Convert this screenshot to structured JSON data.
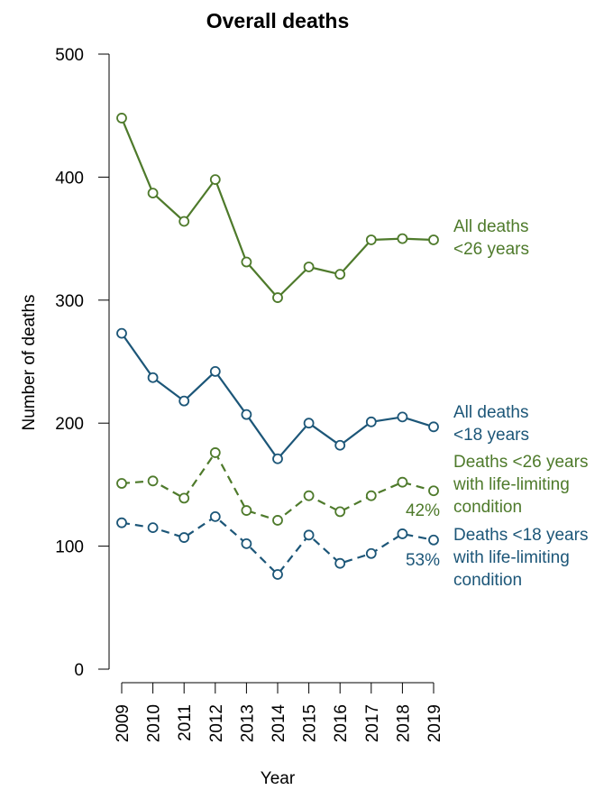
{
  "chart_data": {
    "type": "line",
    "title": "Overall deaths",
    "xlabel": "Year",
    "ylabel": "Number of deaths",
    "x": [
      "2009",
      "2010",
      "2011",
      "2012",
      "2013",
      "2014",
      "2015",
      "2016",
      "2017",
      "2018",
      "2019"
    ],
    "ylim": [
      0,
      500
    ],
    "yticks": [
      0,
      100,
      200,
      300,
      400,
      500
    ],
    "grid": false,
    "legend": "direct labels at right end of lines",
    "series": [
      {
        "key": "all26",
        "label_lines": [
          "All deaths",
          "<26 years"
        ],
        "color": "#4e7a2b",
        "dash": false,
        "values": [
          448,
          387,
          364,
          398,
          331,
          302,
          327,
          321,
          349,
          350,
          349
        ]
      },
      {
        "key": "all18",
        "label_lines": [
          "All deaths",
          "<18 years"
        ],
        "color": "#1c5678",
        "dash": false,
        "values": [
          273,
          237,
          218,
          242,
          207,
          171,
          200,
          182,
          201,
          205,
          197
        ]
      },
      {
        "key": "llc26",
        "label_lines": [
          "Deaths <26 years",
          "with life-limiting",
          "condition"
        ],
        "color": "#4e7a2b",
        "dash": true,
        "annotation": "42%",
        "values": [
          151,
          153,
          139,
          176,
          129,
          121,
          141,
          128,
          141,
          152,
          145
        ]
      },
      {
        "key": "llc18",
        "label_lines": [
          "Deaths <18 years",
          "with life-limiting",
          "condition"
        ],
        "color": "#1c5678",
        "dash": true,
        "annotation": "53%",
        "values": [
          119,
          115,
          107,
          124,
          102,
          77,
          109,
          86,
          94,
          110,
          105
        ]
      }
    ]
  }
}
